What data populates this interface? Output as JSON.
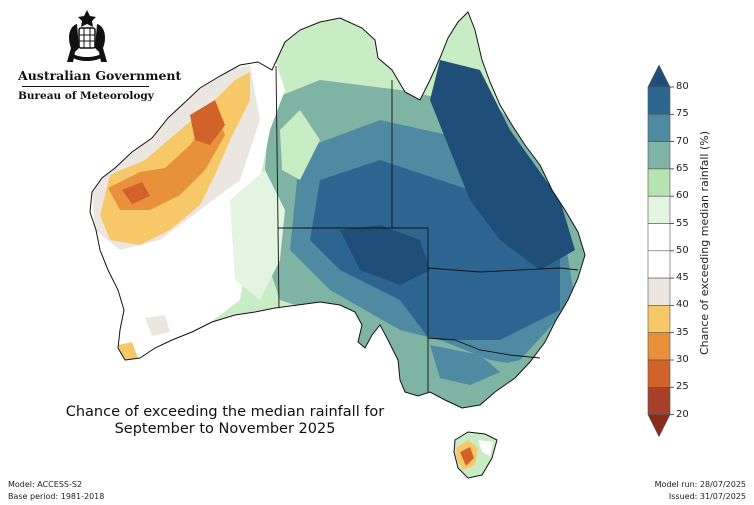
{
  "agency": {
    "name": "Australian Government",
    "bureau": "Bureau of Meteorology"
  },
  "title": {
    "line1": "Chance of exceeding the median rainfall for",
    "line2": "September to November 2025"
  },
  "footer": {
    "model": "Model: ACCESS-S2",
    "base_period": "Base period: 1981-2018",
    "model_run": "Model run: 28/07/2025",
    "issued": "Issued: 31/07/2025"
  },
  "legend": {
    "title": "Chance of exceeding median rainfall (%)",
    "ticks": [
      "80",
      "75",
      "70",
      "65",
      "60",
      "55",
      "50",
      "45",
      "40",
      "35",
      "30",
      "25",
      "20"
    ],
    "bins": [
      {
        "range": ">80",
        "color": "#1f4e79"
      },
      {
        "range": "75-80",
        "color": "#2d6591"
      },
      {
        "range": "70-75",
        "color": "#4f8aa3"
      },
      {
        "range": "65-70",
        "color": "#7fb3a3"
      },
      {
        "range": "60-65",
        "color": "#b5e4b0"
      },
      {
        "range": "55-60",
        "color": "#e3f4e0"
      },
      {
        "range": "50-55",
        "color": "#ffffff"
      },
      {
        "range": "45-50",
        "color": "#ffffff"
      },
      {
        "range": "40-45",
        "color": "#ece6e0"
      },
      {
        "range": "35-40",
        "color": "#f7c867"
      },
      {
        "range": "30-35",
        "color": "#e8913a"
      },
      {
        "range": "25-30",
        "color": "#d0622a"
      },
      {
        "range": "20-25",
        "color": "#a8402a"
      },
      {
        "range": "<20",
        "color": "#8a2b1e"
      }
    ]
  },
  "map": {
    "region": "Australia",
    "regions": [
      {
        "id": "north-west",
        "description": "Kimberley / Pilbara",
        "category": "30-40"
      },
      {
        "id": "western-interior",
        "description": "Western WA interior",
        "category": "40-55"
      },
      {
        "id": "central-north",
        "description": "Top End / western Qld",
        "category": "60-75"
      },
      {
        "id": "central",
        "description": "Central Australia",
        "category": "65-80"
      },
      {
        "id": "east",
        "description": "Eastern Queensland and NSW",
        "category": "75-80+"
      },
      {
        "id": "south-east",
        "description": "Victoria and southern NSW",
        "category": "65-75"
      },
      {
        "id": "tasmania",
        "description": "Tasmania",
        "category": "30-60"
      }
    ]
  }
}
